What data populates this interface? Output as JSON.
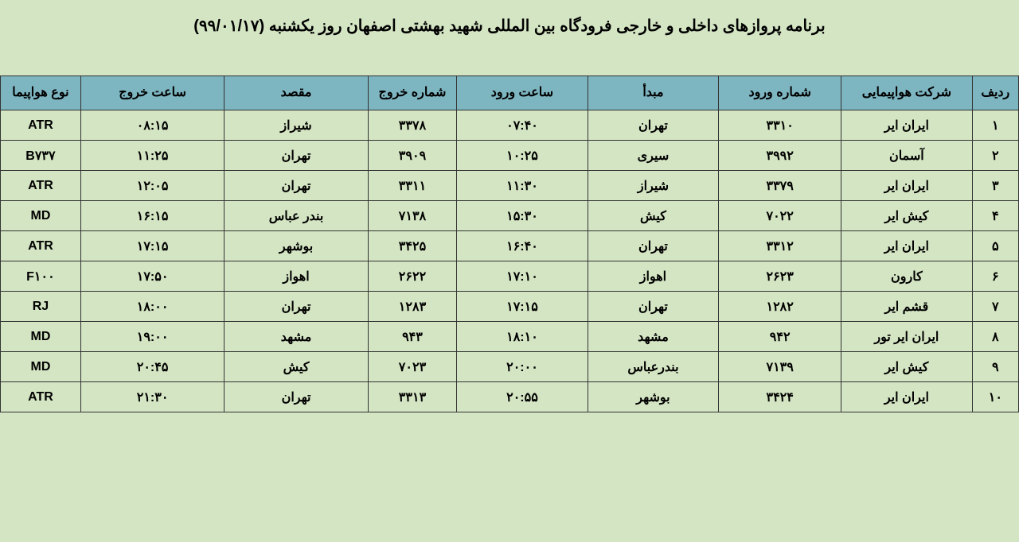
{
  "title": "برنامه پروازهای داخلی و خارجی فرودگاه بین المللی شهید بهشتی اصفهان روز یکشنبه (۹۹/۰۱/۱۷)",
  "table": {
    "type": "table",
    "header_bg": "#7db5c0",
    "row_bg": "#d4e5c3",
    "border_color": "#333333",
    "font_size_header": 16,
    "font_size_cell": 16,
    "columns": [
      {
        "key": "row",
        "label": "ردیف",
        "width": 55
      },
      {
        "key": "airline",
        "label": "شرکت هواپیمایی",
        "width": 155
      },
      {
        "key": "arrival_no",
        "label": "شماره ورود",
        "width": 145
      },
      {
        "key": "origin",
        "label": "مبدأ",
        "width": 155
      },
      {
        "key": "arrival_time",
        "label": "ساعت ورود",
        "width": 155
      },
      {
        "key": "departure_no",
        "label": "شماره خروج",
        "width": 105
      },
      {
        "key": "destination",
        "label": "مقصد",
        "width": 170
      },
      {
        "key": "departure_time",
        "label": "ساعت خروج",
        "width": 170
      },
      {
        "key": "aircraft",
        "label": "نوع هواپیما",
        "width": 95
      }
    ],
    "rows": [
      {
        "row": "۱",
        "airline": "ایران ایر",
        "arrival_no": "۳۳۱۰",
        "origin": "تهران",
        "arrival_time": "۰۷:۴۰",
        "departure_no": "۳۳۷۸",
        "destination": "شیراز",
        "departure_time": "۰۸:۱۵",
        "aircraft": "ATR"
      },
      {
        "row": "۲",
        "airline": "آسمان",
        "arrival_no": "۳۹۹۲",
        "origin": "سیری",
        "arrival_time": "۱۰:۲۵",
        "departure_no": "۳۹۰۹",
        "destination": "تهران",
        "departure_time": "۱۱:۲۵",
        "aircraft": "B۷۳۷"
      },
      {
        "row": "۳",
        "airline": "ایران ایر",
        "arrival_no": "۳۳۷۹",
        "origin": "شیراز",
        "arrival_time": "۱۱:۳۰",
        "departure_no": "۳۳۱۱",
        "destination": "تهران",
        "departure_time": "۱۲:۰۵",
        "aircraft": "ATR"
      },
      {
        "row": "۴",
        "airline": "کیش ایر",
        "arrival_no": "۷۰۲۲",
        "origin": "کیش",
        "arrival_time": "۱۵:۳۰",
        "departure_no": "۷۱۳۸",
        "destination": "بندر عباس",
        "departure_time": "۱۶:۱۵",
        "aircraft": "MD"
      },
      {
        "row": "۵",
        "airline": "ایران ایر",
        "arrival_no": "۳۳۱۲",
        "origin": "تهران",
        "arrival_time": "۱۶:۴۰",
        "departure_no": "۳۴۲۵",
        "destination": "بوشهر",
        "departure_time": "۱۷:۱۵",
        "aircraft": "ATR"
      },
      {
        "row": "۶",
        "airline": "کارون",
        "arrival_no": "۲۶۲۳",
        "origin": "اهواز",
        "arrival_time": "۱۷:۱۰",
        "departure_no": "۲۶۲۲",
        "destination": "اهواز",
        "departure_time": "۱۷:۵۰",
        "aircraft": "F۱۰۰"
      },
      {
        "row": "۷",
        "airline": "قشم ایر",
        "arrival_no": "۱۲۸۲",
        "origin": "تهران",
        "arrival_time": "۱۷:۱۵",
        "departure_no": "۱۲۸۳",
        "destination": "تهران",
        "departure_time": "۱۸:۰۰",
        "aircraft": "RJ"
      },
      {
        "row": "۸",
        "airline": "ایران ایر تور",
        "arrival_no": "۹۴۲",
        "origin": "مشهد",
        "arrival_time": "۱۸:۱۰",
        "departure_no": "۹۴۳",
        "destination": "مشهد",
        "departure_time": "۱۹:۰۰",
        "aircraft": "MD"
      },
      {
        "row": "۹",
        "airline": "کیش ایر",
        "arrival_no": "۷۱۳۹",
        "origin": "بندرعباس",
        "arrival_time": "۲۰:۰۰",
        "departure_no": "۷۰۲۳",
        "destination": "کیش",
        "departure_time": "۲۰:۴۵",
        "aircraft": "MD"
      },
      {
        "row": "۱۰",
        "airline": "ایران ایر",
        "arrival_no": "۳۴۲۴",
        "origin": "بوشهر",
        "arrival_time": "۲۰:۵۵",
        "departure_no": "۳۳۱۳",
        "destination": "تهران",
        "departure_time": "۲۱:۳۰",
        "aircraft": "ATR"
      }
    ]
  }
}
